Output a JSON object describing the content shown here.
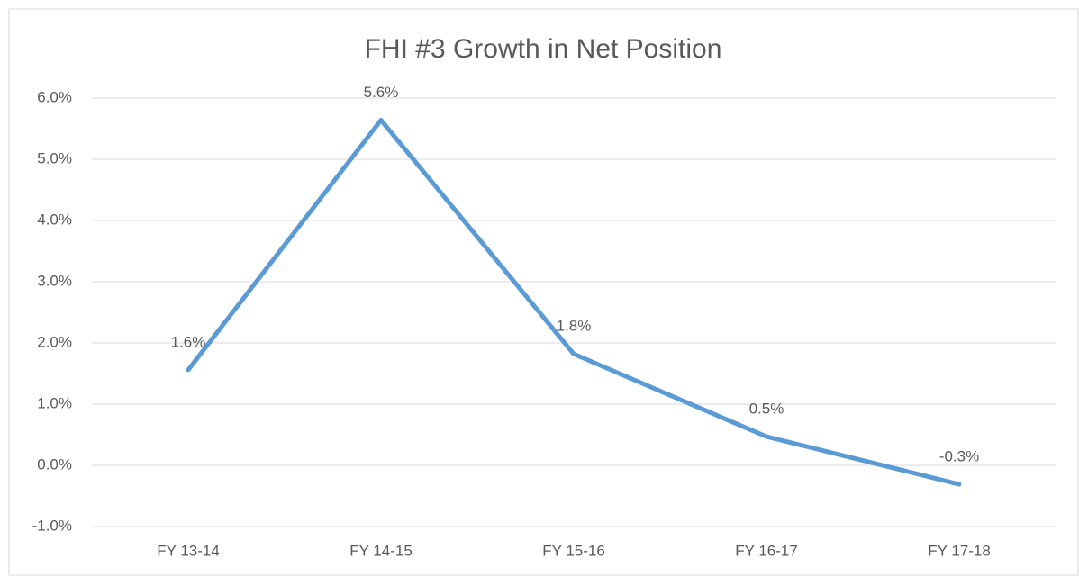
{
  "chart_data": {
    "type": "line",
    "title": "FHI #3 Growth in Net Position",
    "categories": [
      "FY 13-14",
      "FY 14-15",
      "FY 15-16",
      "FY 16-17",
      "FY 17-18"
    ],
    "values": [
      1.56,
      5.64,
      1.82,
      0.47,
      -0.31
    ],
    "value_labels": [
      "1.6%",
      "5.6%",
      "1.8%",
      "0.5%",
      "-0.3%"
    ],
    "color": "#5b9bd5",
    "ylim": [
      -1,
      6
    ],
    "yticks": [
      {
        "value": -1,
        "label": "-1.0%"
      },
      {
        "value": 0,
        "label": "0.0%"
      },
      {
        "value": 1,
        "label": "1.0%"
      },
      {
        "value": 2,
        "label": "2.0%"
      },
      {
        "value": 3,
        "label": "3.0%"
      },
      {
        "value": 4,
        "label": "4.0%"
      },
      {
        "value": 5,
        "label": "5.0%"
      },
      {
        "value": 6,
        "label": "6.0%"
      }
    ],
    "grid": true
  }
}
